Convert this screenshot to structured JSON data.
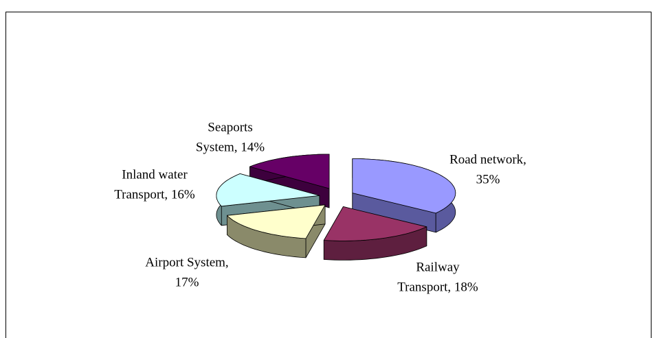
{
  "chart_data": {
    "type": "pie3d",
    "values": [
      35,
      18,
      17,
      16,
      14
    ],
    "value_labels": [
      [
        "Road network,",
        "35%"
      ],
      [
        "Railway",
        "Transport, 18%"
      ],
      [
        "Airport System,",
        "17%"
      ],
      [
        "Inland water",
        "Transport, 16%"
      ],
      [
        "Seaports",
        "System, 14%"
      ]
    ],
    "colors": [
      "#9999ff",
      "#993366",
      "#ffffcc",
      "#ccffff",
      "#660066"
    ],
    "side_colors": [
      "#5a5a9e",
      "#5e1f3f",
      "#8a8a6a",
      "#6e9090",
      "#3d003d"
    ]
  }
}
